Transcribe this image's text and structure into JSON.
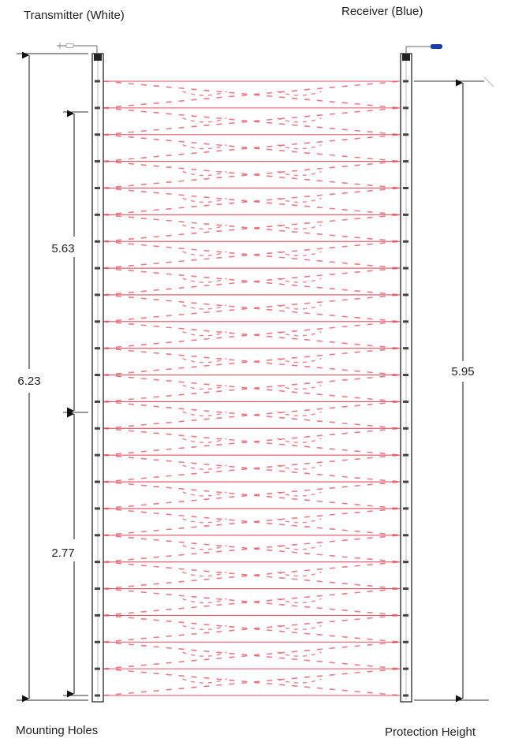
{
  "labels": {
    "transmitter": "Transmitter (White)",
    "receiver": "Receiver (Blue)",
    "mounting_holes": "Mounting Holes",
    "protection_height": "Protection Height"
  },
  "dimensions": {
    "overall_height": "6.23",
    "upper_mount_spacing": "5.63",
    "lower_mount_spacing": "2.77",
    "protection_height": "5.95"
  },
  "beam_count": 24,
  "colors": {
    "beam": "#e05060",
    "frame": "#444444",
    "receiver_cable_tip": "#1a3ea8"
  }
}
